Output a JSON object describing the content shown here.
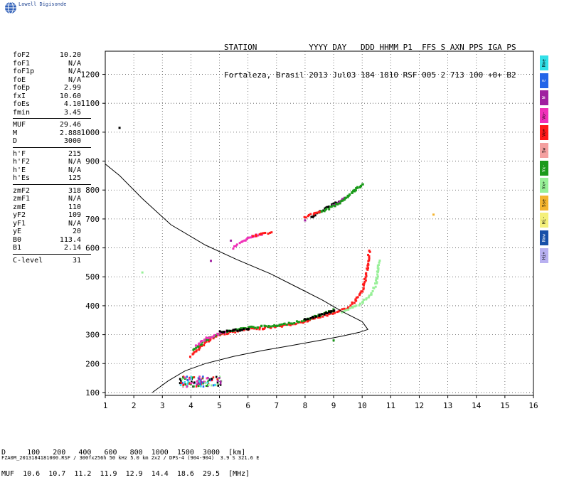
{
  "brand": "Lowell Digisonde",
  "header": {
    "line1": "STATION           YYYY DAY   DDD HHMM P1  FFS S AXN PPS IGA PS",
    "line2": "Fortaleza, Brasil 2013 Jul03 184 1810 RSF 005 2 713 100 +0+ B2"
  },
  "params": [
    {
      "label": "foF2",
      "value": "10.20"
    },
    {
      "label": "foF1",
      "value": "N/A"
    },
    {
      "label": "foF1p",
      "value": "N/A"
    },
    {
      "label": "foE",
      "value": "N/A"
    },
    {
      "label": "foEp",
      "value": "2.99"
    },
    {
      "label": "fxI",
      "value": "10.60"
    },
    {
      "label": "foEs",
      "value": "4.10"
    },
    {
      "label": "fmin",
      "value": "3.45"
    },
    {
      "label": "MUF",
      "value": "29.46"
    },
    {
      "label": "M",
      "value": "2.888"
    },
    {
      "label": "D",
      "value": "3000"
    },
    {
      "label": "h'F",
      "value": "215"
    },
    {
      "label": "h'F2",
      "value": "N/A"
    },
    {
      "label": "h'E",
      "value": "N/A"
    },
    {
      "label": "h'Es",
      "value": "125"
    },
    {
      "label": "zmF2",
      "value": "318"
    },
    {
      "label": "zmF1",
      "value": "N/A"
    },
    {
      "label": "zmE",
      "value": "110"
    },
    {
      "label": "yF2",
      "value": "109"
    },
    {
      "label": "yF1",
      "value": "N/A"
    },
    {
      "label": "yE",
      "value": "20"
    },
    {
      "label": "B0",
      "value": "113.4"
    },
    {
      "label": "B1",
      "value": "2.14"
    },
    {
      "label": "C-level",
      "value": "31"
    }
  ],
  "legend": [
    {
      "label": "Nne",
      "color": "#33e0e8"
    },
    {
      "label": "E",
      "color": "#2466e8"
    },
    {
      "label": "W",
      "color": "#a020a0"
    },
    {
      "label": "Vo-",
      "color": "#f030b8"
    },
    {
      "label": "Vo+",
      "color": "#ff1a1a"
    },
    {
      "label": "Sw",
      "color": "#f4a0a0"
    },
    {
      "label": "Vx-",
      "color": "#1a9a1a"
    },
    {
      "label": "Vx+",
      "color": "#98f098"
    },
    {
      "label": "Sse",
      "color": "#f4b430"
    },
    {
      "label": "Hi-",
      "color": "#f4f07a"
    },
    {
      "label": "Nnw",
      "color": "#1850a8"
    },
    {
      "label": "Hi+",
      "color": "#b8b0f0"
    }
  ],
  "muf_table": {
    "row1": "D     100   200   400   600   800  1000  1500  3000  [km]",
    "row2": "MUF  10.6  10.7  11.2  11.9  12.9  14.4  18.6  29.5  [MHz]"
  },
  "footer": "FZA0M_2013184181000.RSF / 300fx256h 50 kHz 5.0 km 2x2 / DPS-4 (904-904)  3.9 S 321.6 E",
  "chart_data": {
    "type": "scatter",
    "x_range": [
      1,
      16
    ],
    "y_range": [
      90,
      1280
    ],
    "x_ticks": [
      1,
      2,
      3,
      4,
      5,
      6,
      7,
      8,
      9,
      10,
      11,
      12,
      13,
      14,
      15,
      16
    ],
    "y_ticks": [
      100,
      200,
      300,
      400,
      500,
      600,
      700,
      800,
      900,
      1000,
      1100,
      1200
    ],
    "grid": true,
    "legend_placement": "right",
    "profile_curve": [
      [
        2.65,
        100
      ],
      [
        3.2,
        140
      ],
      [
        3.8,
        175
      ],
      [
        4.5,
        200
      ],
      [
        5.5,
        225
      ],
      [
        6.5,
        245
      ],
      [
        7.5,
        262
      ],
      [
        8.5,
        280
      ],
      [
        9.3,
        295
      ],
      [
        9.9,
        308
      ],
      [
        10.2,
        318
      ],
      [
        10.0,
        345
      ],
      [
        9.3,
        380
      ],
      [
        8.6,
        420
      ],
      [
        7.8,
        460
      ],
      [
        6.8,
        510
      ],
      [
        5.6,
        560
      ],
      [
        4.5,
        610
      ],
      [
        3.3,
        680
      ],
      [
        2.3,
        770
      ],
      [
        1.5,
        850
      ],
      [
        1.0,
        890
      ]
    ],
    "traces": [
      {
        "color": "#ff1a1a",
        "points": [
          [
            4.0,
            225
          ],
          [
            4.3,
            255
          ],
          [
            4.7,
            285
          ],
          [
            5.0,
            300
          ],
          [
            5.5,
            310
          ],
          [
            6.0,
            318
          ],
          [
            6.5,
            322
          ],
          [
            7.0,
            328
          ],
          [
            7.5,
            335
          ],
          [
            8.0,
            345
          ],
          [
            8.5,
            360
          ],
          [
            9.0,
            375
          ],
          [
            9.5,
            392
          ],
          [
            9.8,
            420
          ],
          [
            10.0,
            450
          ],
          [
            10.1,
            490
          ],
          [
            10.2,
            540
          ],
          [
            10.25,
            590
          ]
        ]
      },
      {
        "color": "#98f098",
        "points": [
          [
            9.3,
            375
          ],
          [
            9.7,
            395
          ],
          [
            10.0,
            410
          ],
          [
            10.3,
            440
          ],
          [
            10.5,
            480
          ],
          [
            10.55,
            520
          ],
          [
            10.6,
            555
          ]
        ]
      },
      {
        "color": "#1a9a1a",
        "points": [
          [
            4.1,
            245
          ],
          [
            4.5,
            280
          ],
          [
            5.0,
            305
          ],
          [
            6.0,
            325
          ],
          [
            7.0,
            330
          ],
          [
            8.0,
            350
          ],
          [
            9.0,
            385
          ]
        ]
      },
      {
        "color": "#f030b8",
        "points": [
          [
            4.2,
            265
          ],
          [
            4.6,
            290
          ],
          [
            5.2,
            310
          ],
          [
            5.5,
            600
          ],
          [
            6.0,
            635
          ],
          [
            6.5,
            648
          ]
        ]
      },
      {
        "color": "#000000",
        "points": [
          [
            5.0,
            310
          ],
          [
            6.0,
            318
          ],
          [
            8.0,
            352
          ],
          [
            9.0,
            382
          ],
          [
            8.2,
            705
          ],
          [
            8.8,
            740
          ],
          [
            9.3,
            765
          ]
        ]
      },
      {
        "color": "#a020a0",
        "points": [
          [
            5.4,
            625
          ],
          [
            8.0,
            695
          ],
          [
            9.4,
            775
          ],
          [
            9.0,
            745
          ]
        ]
      },
      {
        "color": "#1a9a1a",
        "points": [
          [
            8.5,
            720
          ],
          [
            9.2,
            755
          ],
          [
            10.0,
            820
          ],
          [
            9.4,
            770
          ]
        ]
      },
      {
        "color": "#ff1a1a",
        "points": [
          [
            8.0,
            705
          ],
          [
            8.5,
            725
          ],
          [
            6.2,
            640
          ],
          [
            6.8,
            655
          ]
        ]
      }
    ],
    "es_cluster": {
      "x_range": [
        3.6,
        5.1
      ],
      "y_range": [
        120,
        155
      ]
    },
    "isolated_points": [
      {
        "x": 1.5,
        "y": 1015,
        "color": "#000000"
      },
      {
        "x": 12.5,
        "y": 715,
        "color": "#f4b430"
      },
      {
        "x": 2.3,
        "y": 515,
        "color": "#98f098"
      },
      {
        "x": 4.7,
        "y": 555,
        "color": "#a020a0"
      },
      {
        "x": 9.0,
        "y": 280,
        "color": "#1a9a1a"
      }
    ]
  }
}
